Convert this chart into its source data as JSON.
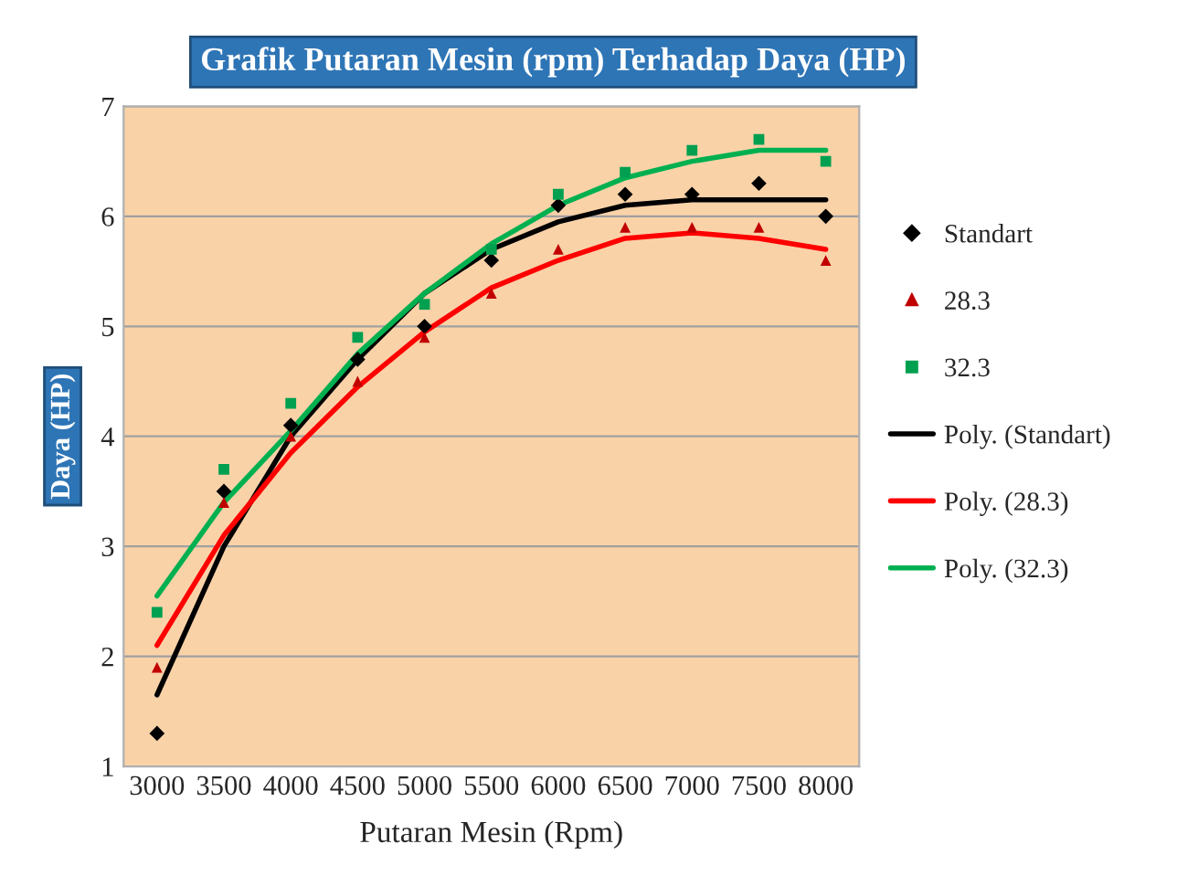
{
  "chart_data": {
    "type": "scatter",
    "title": "Grafik Putaran Mesin (rpm) Terhadap Daya (HP)",
    "xlabel": "Putaran Mesin (Rpm)",
    "ylabel": "Daya (HP)",
    "categories": [
      "3000",
      "3500",
      "4000",
      "4500",
      "5000",
      "5500",
      "6000",
      "6500",
      "7000",
      "7500",
      "8000"
    ],
    "series": [
      {
        "name": "Standart",
        "marker": "diamond",
        "color": "#000000",
        "values": [
          1.3,
          3.5,
          4.1,
          4.7,
          5.0,
          5.6,
          6.1,
          6.2,
          6.2,
          6.3,
          6.0
        ]
      },
      {
        "name": "28.3",
        "marker": "triangle",
        "color": "#c00000",
        "values": [
          1.9,
          3.4,
          4.0,
          4.5,
          4.9,
          5.3,
          5.7,
          5.9,
          5.9,
          5.9,
          5.6
        ]
      },
      {
        "name": "32.3",
        "marker": "square",
        "color": "#00a050",
        "values": [
          2.4,
          3.7,
          4.3,
          4.9,
          5.2,
          5.7,
          6.2,
          6.4,
          6.6,
          6.7,
          6.5
        ]
      },
      {
        "name": "Poly. (Standart)",
        "type": "line",
        "line_style": "solid",
        "color": "#000000",
        "values": [
          1.65,
          3.0,
          4.0,
          4.7,
          5.3,
          5.7,
          5.95,
          6.1,
          6.15,
          6.15,
          6.15
        ]
      },
      {
        "name": "Poly. (28.3)",
        "type": "line",
        "line_style": "solid",
        "color": "#ff0000",
        "values": [
          2.1,
          3.1,
          3.85,
          4.45,
          4.95,
          5.35,
          5.6,
          5.8,
          5.85,
          5.8,
          5.7
        ]
      },
      {
        "name": "Poly. (32.3)",
        "type": "line",
        "line_style": "solid",
        "color": "#00b050",
        "values": [
          2.55,
          3.4,
          4.05,
          4.75,
          5.3,
          5.75,
          6.1,
          6.35,
          6.5,
          6.6,
          6.6
        ]
      }
    ],
    "ylim": [
      1,
      7
    ],
    "yticks": [
      1,
      2,
      3,
      4,
      5,
      6,
      7
    ],
    "grid": "y",
    "legend": "right"
  }
}
